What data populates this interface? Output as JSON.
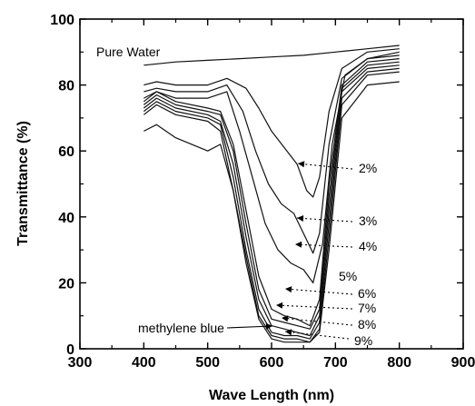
{
  "chart_data": {
    "type": "line",
    "xlabel": "Wave Length (nm)",
    "ylabel": "Transmittance (%)",
    "xlim": [
      300,
      900
    ],
    "ylim": [
      0,
      100
    ],
    "x_ticks": [
      "300",
      "400",
      "500",
      "600",
      "700",
      "800",
      "900"
    ],
    "y_ticks": [
      "0",
      "20",
      "40",
      "60",
      "80",
      "100"
    ],
    "grid": false,
    "legend": "none",
    "series": [
      {
        "name": "Pure Water",
        "x": [
          400,
          450,
          500,
          550,
          600,
          650,
          700,
          750,
          800
        ],
        "y": [
          86,
          87,
          87.5,
          88,
          88.5,
          89,
          90,
          91,
          92
        ]
      },
      {
        "name": "2%",
        "x": [
          400,
          420,
          450,
          500,
          530,
          560,
          580,
          600,
          620,
          640,
          655,
          665,
          675,
          690,
          710,
          750,
          800
        ],
        "y": [
          80,
          81,
          80,
          80,
          82,
          79,
          73,
          66,
          61,
          56,
          48,
          46,
          52,
          72,
          85,
          90,
          91
        ]
      },
      {
        "name": "3%",
        "x": [
          400,
          420,
          450,
          500,
          530,
          555,
          575,
          595,
          615,
          635,
          655,
          665,
          675,
          690,
          710,
          750,
          800
        ],
        "y": [
          78,
          79,
          78,
          78,
          80,
          72,
          60,
          50,
          44,
          41,
          33,
          29,
          35,
          62,
          82,
          88,
          90
        ]
      },
      {
        "name": "4%",
        "x": [
          400,
          420,
          450,
          500,
          530,
          550,
          570,
          590,
          610,
          630,
          650,
          665,
          680,
          695,
          715,
          750,
          800
        ],
        "y": [
          76,
          78,
          76,
          76,
          78,
          66,
          52,
          38,
          30,
          26,
          24,
          20,
          32,
          62,
          83,
          88,
          89
        ]
      },
      {
        "name": "5%",
        "x": [
          400,
          420,
          450,
          500,
          520,
          540,
          560,
          580,
          600,
          620,
          640,
          660,
          675,
          690,
          710,
          750,
          800
        ],
        "y": [
          75,
          78,
          75,
          73,
          72,
          62,
          42,
          22,
          12,
          10,
          9,
          7,
          15,
          50,
          80,
          87,
          88
        ]
      },
      {
        "name": "6%",
        "x": [
          400,
          420,
          450,
          500,
          520,
          540,
          560,
          580,
          600,
          620,
          640,
          660,
          675,
          690,
          710,
          750,
          800
        ],
        "y": [
          74,
          77,
          74,
          72,
          71,
          60,
          38,
          18,
          9,
          8,
          7,
          6,
          12,
          46,
          79,
          86,
          87
        ]
      },
      {
        "name": "7%",
        "x": [
          400,
          420,
          450,
          500,
          520,
          540,
          560,
          580,
          600,
          620,
          640,
          660,
          675,
          690,
          710,
          750,
          800
        ],
        "y": [
          73,
          76,
          73,
          71,
          69,
          56,
          34,
          15,
          7,
          6,
          5,
          4,
          10,
          42,
          78,
          85,
          86
        ]
      },
      {
        "name": "8%",
        "x": [
          400,
          420,
          450,
          500,
          520,
          540,
          560,
          580,
          600,
          620,
          640,
          660,
          675,
          690,
          710,
          750,
          800
        ],
        "y": [
          72,
          75,
          72,
          70,
          68,
          52,
          30,
          12,
          5,
          4,
          4,
          3,
          8,
          38,
          76,
          84,
          85
        ]
      },
      {
        "name": "9%",
        "x": [
          400,
          420,
          450,
          500,
          520,
          540,
          560,
          580,
          600,
          620,
          640,
          660,
          675,
          690,
          710,
          750,
          800
        ],
        "y": [
          71,
          74,
          71,
          69,
          66,
          48,
          26,
          9,
          3,
          2,
          2,
          2,
          6,
          34,
          74,
          83,
          84
        ]
      },
      {
        "name": "methylene blue",
        "x": [
          400,
          420,
          450,
          500,
          520,
          540,
          560,
          580,
          600,
          620,
          640,
          660,
          675,
          690,
          710,
          750,
          800
        ],
        "y": [
          66,
          68,
          64,
          60,
          62,
          48,
          28,
          10,
          4,
          3,
          3,
          2,
          5,
          30,
          70,
          80,
          81
        ]
      }
    ],
    "annotations": [
      {
        "text": "Pure Water"
      },
      {
        "text": "2%"
      },
      {
        "text": "3%"
      },
      {
        "text": "4%"
      },
      {
        "text": "5%"
      },
      {
        "text": "6%"
      },
      {
        "text": "7%"
      },
      {
        "text": "8%"
      },
      {
        "text": "9%"
      },
      {
        "text": "methylene blue"
      }
    ]
  }
}
